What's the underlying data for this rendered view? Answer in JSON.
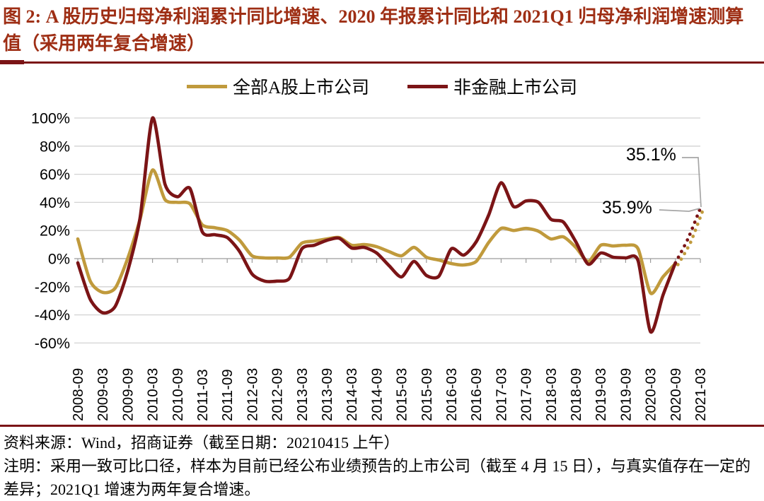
{
  "title": "图 2: A 股历史归母净利润累计同比增速、2020 年报累计同比和 2021Q1 归母净利润增速测算值（采用两年复合增速）",
  "colors": {
    "gold": "#C09A3C",
    "maroon": "#7B1416",
    "title_red": "#9E2E14",
    "grid": "#D2D2D2",
    "axis": "#9C9C9C",
    "leader": "#A6A6A6"
  },
  "annotations": [
    {
      "label": "35.1%",
      "series": "全部A股上市公司"
    },
    {
      "label": "35.9%",
      "series": "非金融上市公司"
    }
  ],
  "footer": {
    "source": "资料来源：Wind，招商证券（截至日期：20210415 上午）",
    "note": "注明：采用一致可比口径，样本为目前已经公布业绩预告的上市公司（截至 4 月 15 日），与真实值存在一定的差异；2021Q1 增速为两年复合增速。"
  },
  "chart_data": {
    "type": "line",
    "grid": true,
    "legend_position": "top",
    "ylim": [
      -60,
      100
    ],
    "y_tick_labels": [
      "100%",
      "80%",
      "60%",
      "40%",
      "20%",
      "0%",
      "-20%",
      "-40%",
      "-60%"
    ],
    "x_tick_labels": [
      "2008-09",
      "2009-03",
      "2009-09",
      "2010-03",
      "2010-09",
      "2011-03",
      "2011-09",
      "2012-03",
      "2012-09",
      "2013-03",
      "2013-09",
      "2014-03",
      "2014-09",
      "2015-03",
      "2015-09",
      "2016-03",
      "2016-09",
      "2017-03",
      "2017-09",
      "2018-03",
      "2018-09",
      "2019-03",
      "2019-09",
      "2020-03",
      "2020-09",
      "2021-03"
    ],
    "x_dates": [
      "2008-09",
      "2008-12",
      "2009-03",
      "2009-06",
      "2009-09",
      "2009-12",
      "2010-03",
      "2010-06",
      "2010-09",
      "2010-12",
      "2011-03",
      "2011-06",
      "2011-09",
      "2011-12",
      "2012-03",
      "2012-06",
      "2012-09",
      "2012-12",
      "2013-03",
      "2013-06",
      "2013-09",
      "2013-12",
      "2014-03",
      "2014-06",
      "2014-09",
      "2014-12",
      "2015-03",
      "2015-06",
      "2015-09",
      "2015-12",
      "2016-03",
      "2016-06",
      "2016-09",
      "2016-12",
      "2017-03",
      "2017-06",
      "2017-09",
      "2017-12",
      "2018-03",
      "2018-06",
      "2018-09",
      "2018-12",
      "2019-03",
      "2019-06",
      "2019-09",
      "2019-12",
      "2020-03",
      "2020-06",
      "2020-09"
    ],
    "estimate_dates": [
      "2020-12",
      "2021-03"
    ],
    "series": [
      {
        "name": "全部A股上市公司",
        "color": "#C09A3C",
        "values": [
          14,
          -16,
          -24,
          -21,
          0,
          28,
          63,
          42,
          40,
          39,
          24,
          22,
          20,
          13,
          2,
          0.5,
          0.5,
          1,
          11,
          12.5,
          14,
          15,
          9.5,
          10,
          8.5,
          5,
          2,
          8,
          1,
          -1,
          -3.5,
          -4.5,
          -2,
          11.5,
          21.5,
          20,
          21.5,
          19.5,
          14,
          15.5,
          8,
          -2,
          9.5,
          9,
          9.5,
          7,
          -24.5,
          -13,
          -3.5
        ],
        "estimate_values": [
          12,
          35.1
        ]
      },
      {
        "name": "非金融上市公司",
        "color": "#7B1416",
        "values": [
          -3,
          -29,
          -38.5,
          -34,
          -9,
          29,
          100,
          53,
          44,
          50,
          19,
          17,
          15,
          5,
          -11,
          -16,
          -16,
          -14,
          7,
          9.5,
          13,
          14.5,
          7.5,
          8,
          4,
          -5,
          -13,
          -2,
          -12,
          -12.5,
          7,
          2.5,
          12,
          31,
          54,
          37,
          41,
          40,
          28,
          26,
          12,
          -4,
          4,
          1,
          0.5,
          -1.5,
          -52,
          -26,
          -3
        ],
        "estimate_values": [
          14,
          35.9
        ]
      }
    ]
  }
}
